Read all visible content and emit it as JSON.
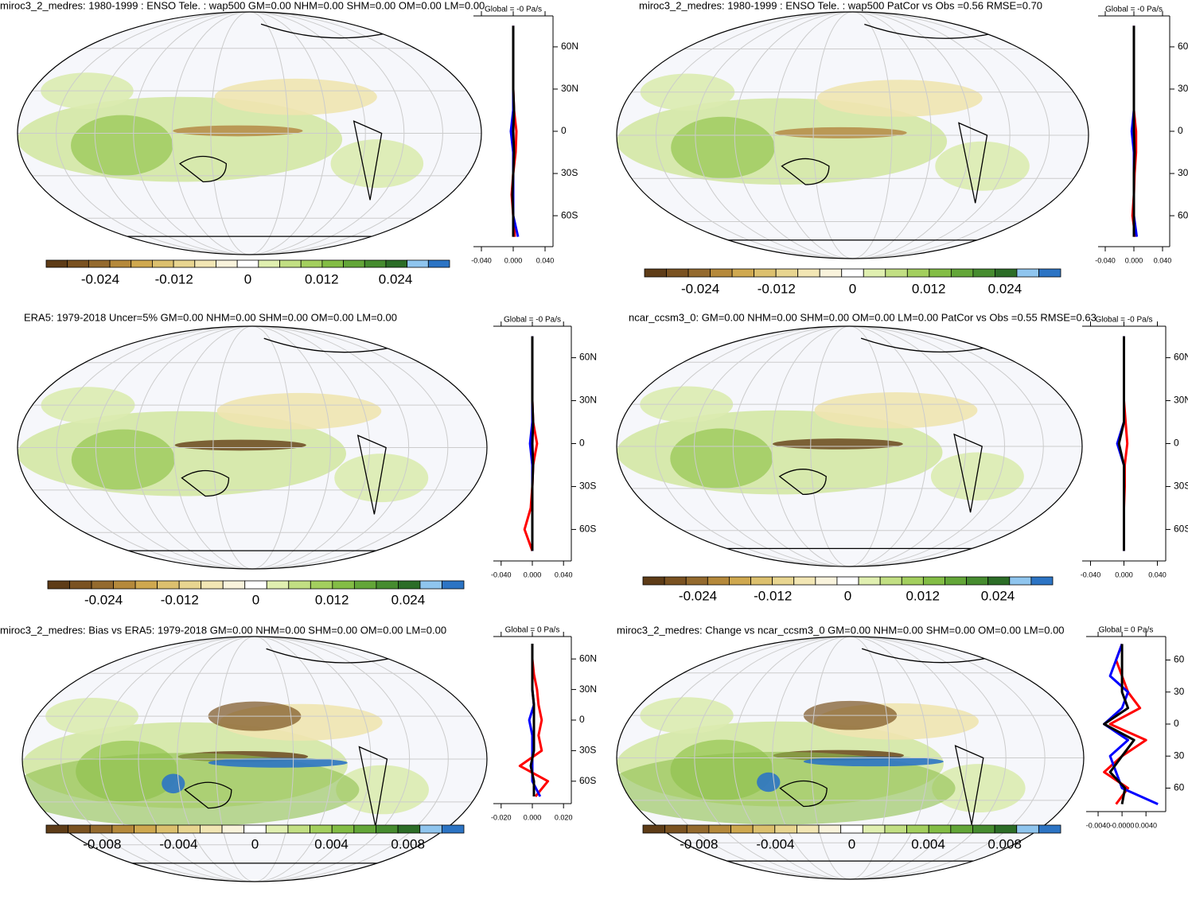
{
  "colorbar_colors": [
    "#5e3c17",
    "#7a5221",
    "#946a2e",
    "#b5893b",
    "#cfa84f",
    "#dcc06e",
    "#e8d590",
    "#f2e6b4",
    "#f9f3dc",
    "#ffffff",
    "#e0efb0",
    "#c2df83",
    "#a3cf5e",
    "#83bd45",
    "#63a638",
    "#468c2f",
    "#2c6d27",
    "#8fc5ee",
    "#2c74c4"
  ],
  "panels": [
    {
      "title": "miroc3_2_medres: 1980-1999 : ENSO Tele. : wap500 GM=0.00 NHM=0.00 SHM=0.00 OM=0.00 LM=0.00",
      "colorbar_labels": [
        "-0.024",
        "-0.012",
        "0",
        "0.012",
        "0.024"
      ],
      "zonal": {
        "title": "Global = -0 Pa/s",
        "xlim": [
          -0.05,
          0.05
        ],
        "xticks": [
          {
            "value": -0.04,
            "label": "-0.040"
          },
          {
            "value": 0,
            "label": "0.000"
          },
          {
            "value": 0.04,
            "label": "0.040"
          }
        ],
        "ylim": [
          -82,
          82
        ],
        "yticks": [
          {
            "value": 60,
            "label": "60N"
          },
          {
            "value": 30,
            "label": "30N"
          },
          0,
          {
            "value": -30,
            "label": "30S"
          },
          {
            "value": -60,
            "label": "60S"
          }
        ],
        "lat": [
          -75,
          -60,
          -45,
          -30,
          -15,
          0,
          15,
          30,
          45,
          60,
          75
        ],
        "series": [
          {
            "color": "#ff0000",
            "values": [
              0.002,
              0.0,
              -0.002,
              0.0,
              0.003,
              0.004,
              0.001,
              0.0,
              0.0,
              0.0,
              0.0
            ]
          },
          {
            "color": "#0000ff",
            "values": [
              0.006,
              0.0,
              0.0,
              0.0,
              0.0,
              -0.003,
              0.0,
              0.0,
              0.0,
              0.0,
              0.0
            ]
          },
          {
            "color": "#000000",
            "values": [
              0.0,
              0.0,
              -0.001,
              0.0,
              0.001,
              0.0,
              0.001,
              0.0,
              0.0,
              0.0,
              0.0
            ]
          }
        ]
      }
    },
    {
      "title": "miroc3_2_medres: 1980-1999 : ENSO Tele. : wap500 PatCor vs Obs =0.56 RMSE=0.70",
      "colorbar_labels": [
        "-0.024",
        "-0.012",
        "0",
        "0.012",
        "0.024"
      ],
      "zonal": {
        "title": "Global = -0 Pa/s",
        "xlim": [
          -0.05,
          0.05
        ],
        "xticks": [
          {
            "value": -0.04,
            "label": "-0.040"
          },
          {
            "value": 0,
            "label": "0.000"
          },
          {
            "value": 0.04,
            "label": "0.040"
          }
        ],
        "ylim": [
          -82,
          82
        ],
        "yticks": [
          {
            "value": 60,
            "label": "60N"
          },
          {
            "value": 30,
            "label": "30N"
          },
          0,
          {
            "value": -30,
            "label": "30S"
          },
          {
            "value": -60,
            "label": "60S"
          }
        ],
        "lat": [
          -75,
          -60,
          -45,
          -30,
          -15,
          0,
          15,
          30,
          45,
          60,
          75
        ],
        "series": [
          {
            "color": "#ff0000",
            "values": [
              0.002,
              -0.002,
              0.0,
              0.001,
              0.003,
              0.003,
              0.0,
              0.0,
              0.0,
              0.0,
              0.0
            ]
          },
          {
            "color": "#0000ff",
            "values": [
              0.004,
              0.0,
              0.0,
              0.0,
              0.0,
              -0.003,
              0.0,
              0.0,
              0.0,
              0.0,
              0.0
            ]
          },
          {
            "color": "#000000",
            "values": [
              0.0,
              0.0,
              0.0,
              0.0,
              0.001,
              0.0,
              0.0,
              0.0,
              0.0,
              0.0,
              0.0
            ]
          }
        ]
      }
    },
    {
      "title": "ERA5: 1979-2018 Uncer=5% GM=0.00 NHM=0.00 SHM=0.00 OM=0.00 LM=0.00",
      "colorbar_labels": [
        "-0.024",
        "-0.012",
        "0",
        "0.012",
        "0.024"
      ],
      "zonal": {
        "title": "Global = -0 Pa/s",
        "xlim": [
          -0.05,
          0.05
        ],
        "xticks": [
          {
            "value": -0.04,
            "label": "-0.040"
          },
          {
            "value": 0,
            "label": "0.000"
          },
          {
            "value": 0.04,
            "label": "0.040"
          }
        ],
        "ylim": [
          -82,
          82
        ],
        "yticks": [
          {
            "value": 60,
            "label": "60N"
          },
          {
            "value": 30,
            "label": "30N"
          },
          0,
          {
            "value": -30,
            "label": "30S"
          },
          {
            "value": -60,
            "label": "60S"
          }
        ],
        "lat": [
          -75,
          -60,
          -45,
          -30,
          -15,
          0,
          15,
          30,
          45,
          60,
          75
        ],
        "series": [
          {
            "color": "#ff0000",
            "values": [
              0.0,
              -0.01,
              -0.002,
              0.0,
              0.001,
              0.006,
              0.001,
              0.0,
              0.0,
              0.0,
              0.0
            ]
          },
          {
            "color": "#0000ff",
            "values": [
              0.0,
              0.0,
              0.0,
              0.0,
              0.0,
              -0.003,
              0.0,
              0.0,
              0.0,
              0.0,
              0.0
            ]
          },
          {
            "color": "#000000",
            "values": [
              0.0,
              0.0,
              0.0,
              0.0,
              0.001,
              0.0,
              0.001,
              0.0,
              0.0,
              0.0,
              0.0
            ]
          }
        ]
      }
    },
    {
      "title": "ncar_ccsm3_0: GM=0.00 NHM=0.00 SHM=0.00 OM=0.00 LM=0.00 PatCor vs Obs =0.55 RMSE=0.63",
      "colorbar_labels": [
        "-0.024",
        "-0.012",
        "0",
        "0.012",
        "0.024"
      ],
      "zonal": {
        "title": "Global = -0 Pa/s",
        "xlim": [
          -0.05,
          0.05
        ],
        "xticks": [
          {
            "value": -0.04,
            "label": "-0.040"
          },
          {
            "value": 0,
            "label": "0.000"
          },
          {
            "value": 0.04,
            "label": "0.040"
          }
        ],
        "ylim": [
          -82,
          82
        ],
        "yticks": [
          {
            "value": 60,
            "label": "60N"
          },
          {
            "value": 30,
            "label": "30N"
          },
          0,
          {
            "value": -30,
            "label": "30S"
          },
          {
            "value": -60,
            "label": "60S"
          }
        ],
        "lat": [
          -75,
          -60,
          -45,
          -30,
          -15,
          0,
          15,
          30,
          45,
          60,
          75
        ],
        "series": [
          {
            "color": "#ff0000",
            "values": [
              0.0,
              0.0,
              0.0,
              0.001,
              0.001,
              0.004,
              0.002,
              0.0,
              0.0,
              0.0,
              0.0
            ]
          },
          {
            "color": "#0000ff",
            "values": [
              0.0,
              0.0,
              0.0,
              0.0,
              0.0,
              -0.008,
              0.0,
              0.0,
              0.0,
              0.0,
              0.0
            ]
          },
          {
            "color": "#000000",
            "values": [
              0.0,
              0.0,
              0.0,
              0.0,
              0.0,
              -0.006,
              0.0,
              0.0,
              0.0,
              0.0,
              0.0
            ]
          }
        ]
      }
    },
    {
      "title": "miroc3_2_medres: Bias vs ERA5: 1979-2018 GM=0.00 NHM=0.00 SHM=0.00 OM=0.00 LM=0.00",
      "colorbar_labels": [
        "-0.008",
        "-0.004",
        "0",
        "0.004",
        "0.008"
      ],
      "zonal": {
        "title": "Global = 0 Pa/s",
        "xlim": [
          -0.025,
          0.025
        ],
        "xticks": [
          {
            "value": -0.02,
            "label": "-0.020"
          },
          {
            "value": 0,
            "label": "0.000"
          },
          {
            "value": 0.02,
            "label": "0.020"
          }
        ],
        "ylim": [
          -82,
          82
        ],
        "yticks": [
          {
            "value": 60,
            "label": "60N"
          },
          {
            "value": 30,
            "label": "30N"
          },
          0,
          {
            "value": -30,
            "label": "30S"
          },
          {
            "value": -60,
            "label": "60S"
          }
        ],
        "lat": [
          -75,
          -60,
          -45,
          -30,
          -15,
          0,
          15,
          30,
          45,
          60,
          75
        ],
        "series": [
          {
            "color": "#ff0000",
            "values": [
              0.002,
              0.01,
              -0.008,
              0.006,
              0.004,
              0.006,
              0.004,
              0.003,
              0.001,
              0.0,
              0.0
            ]
          },
          {
            "color": "#0000ff",
            "values": [
              0.005,
              0.0,
              0.0,
              0.0,
              0.0,
              -0.002,
              0.001,
              0.0,
              0.0,
              0.0,
              0.0
            ]
          },
          {
            "color": "#000000",
            "values": [
              0.001,
              0.001,
              -0.001,
              0.001,
              0.001,
              0.001,
              0.001,
              0.0,
              0.0,
              0.0,
              0.0
            ]
          }
        ]
      }
    },
    {
      "title": "miroc3_2_medres: Change vs ncar_ccsm3_0 GM=0.00 NHM=0.00 SHM=0.00 OM=0.00 LM=0.00",
      "colorbar_labels": [
        "-0.008",
        "-0.004",
        "0",
        "0.004",
        "0.008"
      ],
      "zonal": {
        "title": "Global = 0 Pa/s",
        "xlim": [
          -0.006,
          0.0073
        ],
        "xticks": [
          {
            "value": -0.004,
            "label": "-0.0040"
          },
          {
            "value": 0,
            "label": "-0.0000"
          },
          {
            "value": 0.004,
            "label": "0.0040"
          }
        ],
        "ylim": [
          -82,
          82
        ],
        "yticks": [
          {
            "value": 60,
            "label": "60"
          },
          {
            "value": 30,
            "label": "30"
          },
          0,
          {
            "value": -30,
            "label": "30"
          },
          {
            "value": -60,
            "label": "60"
          }
        ],
        "lat": [
          -75,
          -60,
          -45,
          -30,
          -15,
          0,
          15,
          30,
          45,
          60,
          75
        ],
        "series": [
          {
            "color": "#ff0000",
            "values": [
              -0.001,
              0.001,
              -0.003,
              0.0,
              0.004,
              -0.002,
              0.003,
              0.001,
              0.0,
              -0.001,
              0.0
            ]
          },
          {
            "color": "#0000ff",
            "values": [
              0.006,
              0.0,
              -0.001,
              -0.002,
              0.001,
              -0.003,
              0.0,
              0.001,
              -0.002,
              -0.001,
              0.0
            ]
          },
          {
            "color": "#000000",
            "values": [
              0.0,
              0.0005,
              -0.002,
              0.0,
              0.002,
              -0.003,
              0.001,
              0.0,
              0.0,
              0.0,
              0.0
            ]
          }
        ]
      }
    }
  ]
}
